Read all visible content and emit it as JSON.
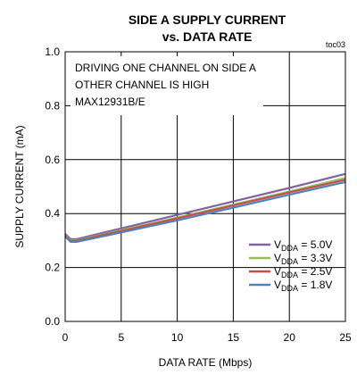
{
  "chart_data": {
    "type": "line",
    "title_line1": "SIDE A SUPPLY CURRENT",
    "title_line2": "vs. DATA RATE",
    "figure_id": "toc03",
    "xlabel": "DATA RATE (Mbps)",
    "ylabel": "SUPPLY CURRENT (mA)",
    "xlim": [
      0,
      25
    ],
    "ylim": [
      0,
      1.0
    ],
    "x_ticks": [
      "0",
      "5",
      "10",
      "15",
      "20",
      "25"
    ],
    "y_ticks": [
      "0.0",
      "0.2",
      "0.4",
      "0.6",
      "0.8",
      "1.0"
    ],
    "grid": true,
    "legend_position": "bottom-right",
    "annotations": [
      "DRIVING ONE CHANNEL ON SIDE A",
      "OTHER CHANNEL IS HIGH",
      "MAX12931B/E"
    ],
    "series": [
      {
        "name_main": "V",
        "name_sub": "DDA",
        "name_suffix": " = 5.0V",
        "color": "#8064a2",
        "x": [
          0,
          0.5,
          1,
          5,
          10,
          15,
          20,
          25
        ],
        "y": [
          0.325,
          0.305,
          0.305,
          0.345,
          0.395,
          0.445,
          0.495,
          0.547
        ]
      },
      {
        "name_main": "V",
        "name_sub": "DDA",
        "name_suffix": " = 3.3V",
        "color": "#9bbb59",
        "x": [
          0,
          0.5,
          1,
          5,
          10,
          15,
          20,
          25
        ],
        "y": [
          0.32,
          0.3,
          0.3,
          0.338,
          0.385,
          0.433,
          0.482,
          0.532
        ]
      },
      {
        "name_main": "V",
        "name_sub": "DDA",
        "name_suffix": " = 2.5V",
        "color": "#c0504d",
        "x": [
          0,
          0.5,
          1,
          5,
          10,
          15,
          20,
          25
        ],
        "y": [
          0.318,
          0.298,
          0.298,
          0.335,
          0.382,
          0.43,
          0.478,
          0.525
        ]
      },
      {
        "name_main": "V",
        "name_sub": "DDA",
        "name_suffix": " = 1.8V",
        "color": "#4f81bd",
        "x": [
          0,
          0.5,
          1,
          5,
          10,
          15,
          20,
          25
        ],
        "y": [
          0.315,
          0.295,
          0.295,
          0.33,
          0.375,
          0.422,
          0.47,
          0.517
        ]
      }
    ]
  }
}
